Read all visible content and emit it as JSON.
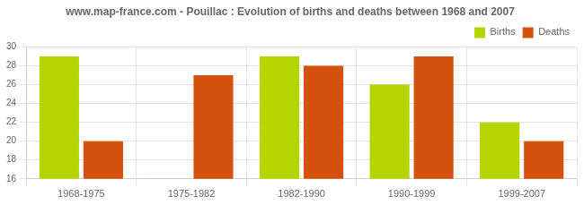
{
  "chart_data": {
    "type": "bar",
    "title": "www.map-france.com - Pouillac : Evolution of births and deaths between 1968 and 2007",
    "categories": [
      "1968-1975",
      "1975-1982",
      "1982-1990",
      "1990-1999",
      "1999-2007"
    ],
    "series": [
      {
        "name": "Births",
        "color": "#b5d400",
        "values": [
          29,
          16,
          29,
          26,
          22
        ]
      },
      {
        "name": "Deaths",
        "color": "#d4510e",
        "values": [
          20,
          27,
          28,
          29,
          20
        ]
      }
    ],
    "ylim": [
      16,
      30
    ],
    "yticks": [
      16,
      18,
      20,
      22,
      24,
      26,
      28,
      30
    ],
    "grid": true,
    "legend": "upper right"
  }
}
